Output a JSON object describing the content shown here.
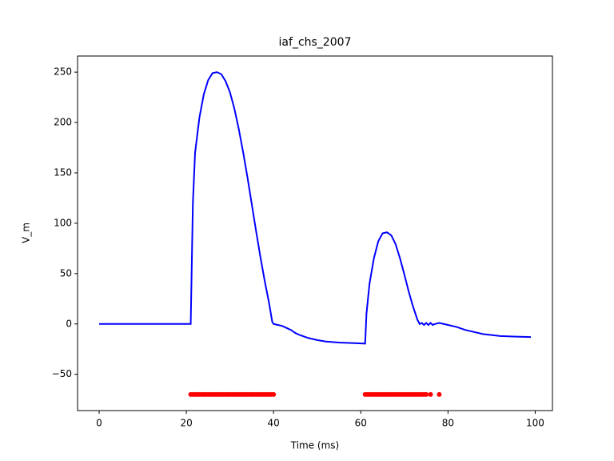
{
  "chart_data": {
    "type": "line",
    "title": "iaf_chs_2007",
    "xlabel": "Time (ms)",
    "ylabel": "V_m",
    "xlim": [
      -4.95,
      103.95
    ],
    "xticks": [
      0,
      20,
      40,
      60,
      80,
      100
    ],
    "ylim": [
      -86,
      266
    ],
    "yticks": [
      {
        "value": -50,
        "label": "−50"
      },
      0,
      50,
      100,
      150,
      200,
      250
    ],
    "series": [
      {
        "type": "line",
        "color": "#0000ff",
        "x": [
          0,
          5,
          10,
          15,
          21,
          21.5,
          22,
          23,
          24,
          25,
          26,
          27,
          28,
          29,
          30,
          31,
          32,
          33,
          34,
          35,
          36,
          37,
          38,
          39,
          39.7,
          40,
          41,
          42,
          43,
          44,
          45,
          46,
          48,
          50,
          52,
          55,
          58,
          61,
          61.3,
          62,
          63,
          64,
          65,
          66,
          67,
          68,
          69,
          70,
          71,
          72,
          73,
          73.5,
          74,
          74.5,
          75,
          75.5,
          76,
          76.5,
          77,
          78,
          79,
          80,
          82,
          84,
          86,
          88,
          90,
          92,
          95,
          99
        ],
        "values": [
          0,
          0,
          0,
          0,
          0,
          120,
          170,
          205,
          228,
          242,
          249,
          250,
          248,
          241,
          230,
          214,
          194,
          171,
          146,
          119,
          92,
          66,
          42,
          20,
          2,
          0,
          -1,
          -2,
          -4,
          -6,
          -9,
          -11,
          -14,
          -16,
          -17.5,
          -18.5,
          -19,
          -19.5,
          10,
          40,
          65,
          82,
          90,
          91,
          88,
          79,
          65,
          49,
          32,
          17,
          4,
          0,
          1,
          -1,
          1,
          -1,
          1,
          -1,
          0,
          1,
          0,
          -1,
          -3,
          -6,
          -8,
          -10,
          -11,
          -12,
          -12.5,
          -13
        ]
      },
      {
        "type": "scatter",
        "color": "#ff0000",
        "x": [
          21,
          21.5,
          22,
          22.5,
          23,
          23.5,
          24,
          24.5,
          25,
          25.5,
          26,
          26.5,
          27,
          27.5,
          28,
          28.5,
          29,
          29.5,
          30,
          30.5,
          31,
          31.5,
          32,
          32.5,
          33,
          33.5,
          34,
          34.5,
          35,
          35.5,
          36,
          36.5,
          37,
          37.5,
          38,
          38.5,
          39,
          39.5,
          40,
          61,
          61.5,
          62,
          62.5,
          63,
          63.5,
          64,
          64.5,
          65,
          65.5,
          66,
          66.5,
          67,
          67.5,
          68,
          68.5,
          69,
          69.5,
          70,
          70.5,
          71,
          71.5,
          72,
          72.5,
          73,
          73.5,
          74,
          74.5,
          75,
          76,
          78
        ],
        "values": [
          -70,
          -70,
          -70,
          -70,
          -70,
          -70,
          -70,
          -70,
          -70,
          -70,
          -70,
          -70,
          -70,
          -70,
          -70,
          -70,
          -70,
          -70,
          -70,
          -70,
          -70,
          -70,
          -70,
          -70,
          -70,
          -70,
          -70,
          -70,
          -70,
          -70,
          -70,
          -70,
          -70,
          -70,
          -70,
          -70,
          -70,
          -70,
          -70,
          -70,
          -70,
          -70,
          -70,
          -70,
          -70,
          -70,
          -70,
          -70,
          -70,
          -70,
          -70,
          -70,
          -70,
          -70,
          -70,
          -70,
          -70,
          -70,
          -70,
          -70,
          -70,
          -70,
          -70,
          -70,
          -70,
          -70,
          -70,
          -70,
          -70,
          -70
        ]
      }
    ]
  }
}
